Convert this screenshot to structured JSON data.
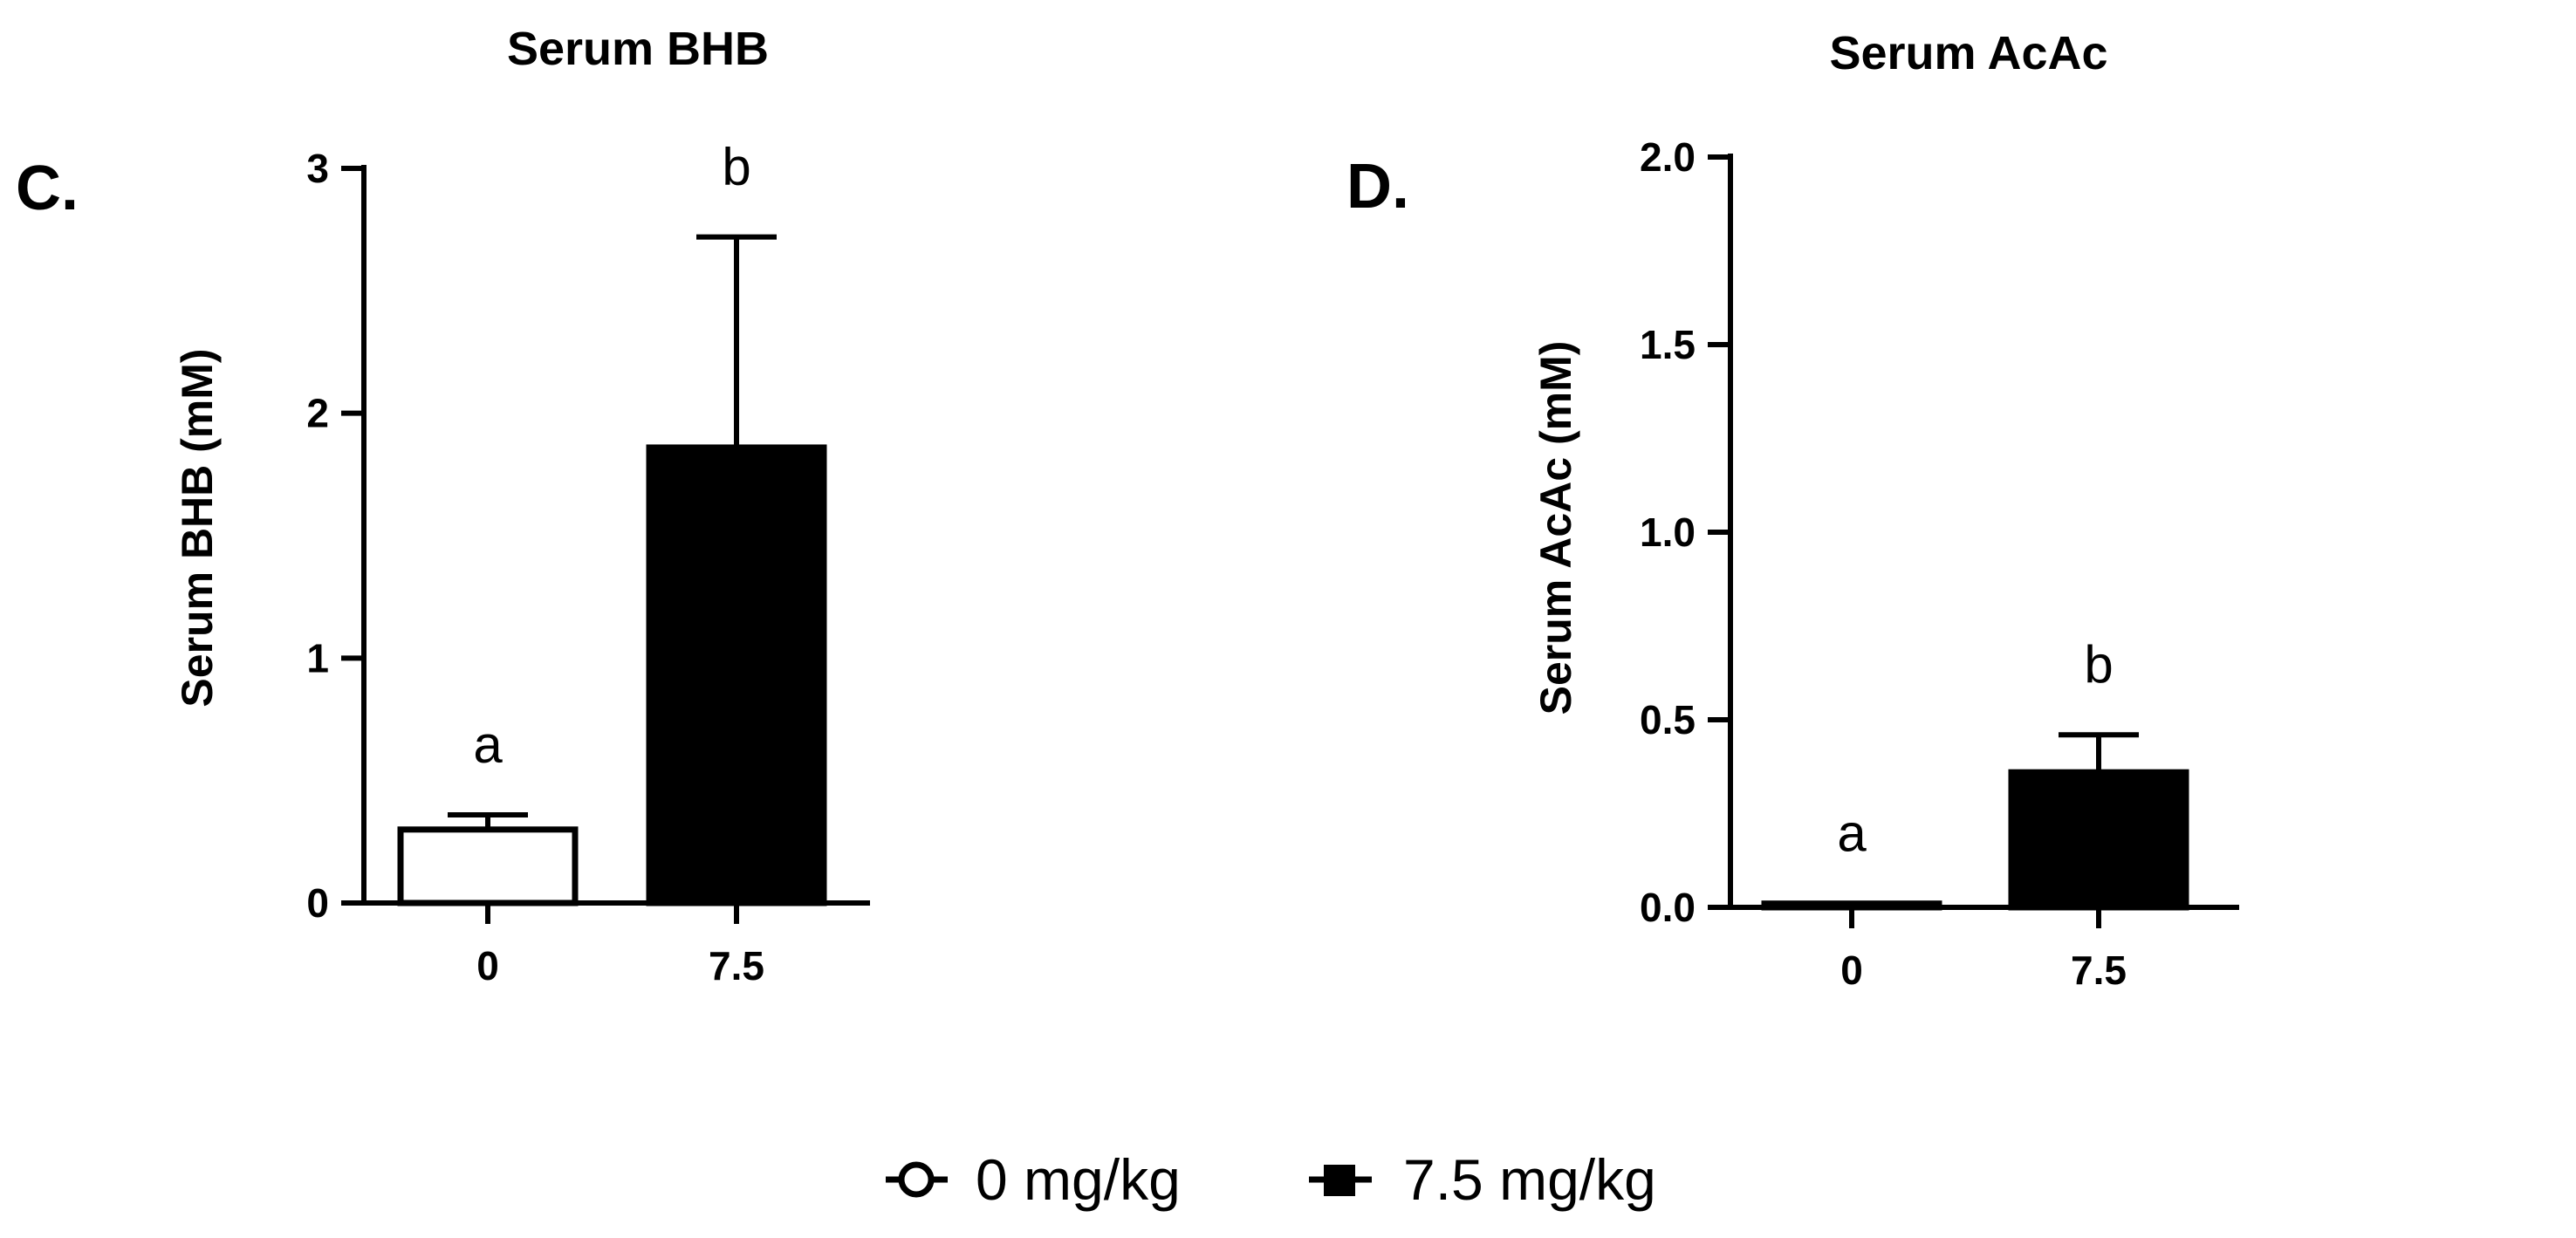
{
  "chart_data": [
    {
      "type": "bar",
      "panel": "C.",
      "title": "Serum BHB",
      "ylabel": "Serum BHB (mM)",
      "xlabel": "",
      "categories": [
        "0",
        "7.5"
      ],
      "values": [
        0.3,
        1.86
      ],
      "errors": [
        0.06,
        0.86
      ],
      "significance": [
        "a",
        "b"
      ],
      "ylim": [
        0,
        3
      ],
      "yticks": [
        0,
        1,
        2,
        3
      ],
      "ytick_labels": [
        "0",
        "1",
        "2",
        "3"
      ]
    },
    {
      "type": "bar",
      "panel": "D.",
      "title": "Serum AcAc",
      "ylabel": "Serum AcAc (mM)",
      "xlabel": "",
      "categories": [
        "0",
        "7.5"
      ],
      "values": [
        0.01,
        0.36
      ],
      "errors": [
        0.0,
        0.1
      ],
      "significance": [
        "a",
        "b"
      ],
      "ylim": [
        0,
        2.0
      ],
      "yticks": [
        0,
        0.5,
        1.0,
        1.5,
        2.0
      ],
      "ytick_labels": [
        "0.0",
        "0.5",
        "1.0",
        "1.5",
        "2.0"
      ]
    }
  ],
  "legend": [
    {
      "label": "0 mg/kg",
      "marker": "open-circle",
      "fill": "#ffffff"
    },
    {
      "label": "7.5 mg/kg",
      "marker": "filled-square",
      "fill": "#000000"
    }
  ],
  "colors": {
    "open_bar": "#ffffff",
    "filled_bar": "#000000",
    "ink": "#000000"
  }
}
